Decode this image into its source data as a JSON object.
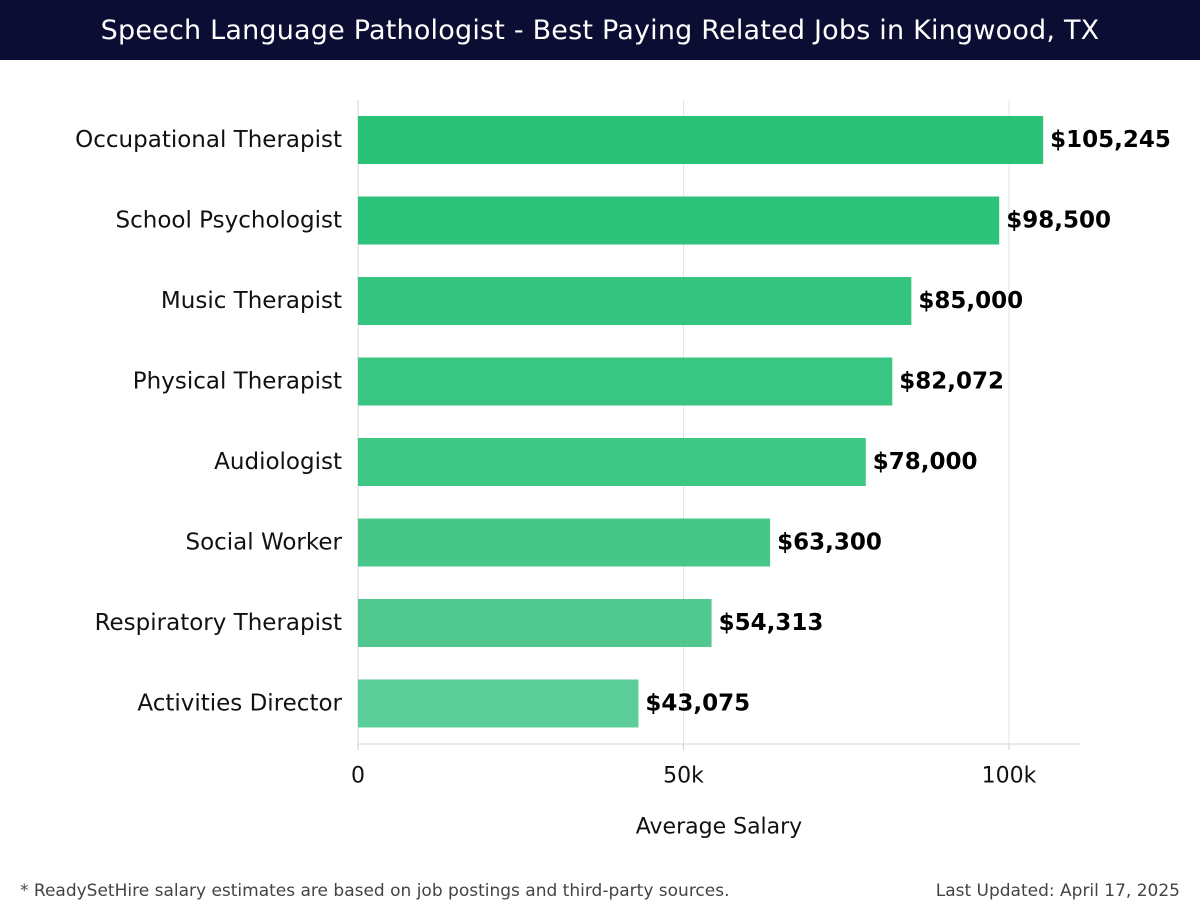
{
  "header": {
    "title": "Speech Language Pathologist - Best Paying Related Jobs in Kingwood, TX"
  },
  "chart_data": {
    "type": "bar",
    "orientation": "horizontal",
    "categories": [
      "Occupational Therapist",
      "School Psychologist",
      "Music Therapist",
      "Physical Therapist",
      "Audiologist",
      "Social Worker",
      "Respiratory Therapist",
      "Activities Director"
    ],
    "values": [
      105245,
      98500,
      85000,
      82072,
      78000,
      63300,
      54313,
      43075
    ],
    "data_labels": [
      "$105,245",
      "$98,500",
      "$85,000",
      "$82,072",
      "$78,000",
      "$63,300",
      "$54,313",
      "$43,075"
    ],
    "xlabel": "Average Salary",
    "ylabel": "",
    "xlim": [
      0,
      110000
    ],
    "x_ticks": [
      0,
      50000,
      100000
    ],
    "x_tick_labels": [
      "0",
      "50k",
      "100k"
    ],
    "grid": "vertical",
    "legend": "none",
    "colors": [
      "#2ac276",
      "#2dc37a",
      "#35c47f",
      "#39c582",
      "#3ec684",
      "#47c68a",
      "#50c88f",
      "#5bcd98"
    ]
  },
  "footer": {
    "note": "* ReadySetHire salary estimates are based on job postings and third-party sources.",
    "updated": "Last Updated: April 17, 2025"
  }
}
